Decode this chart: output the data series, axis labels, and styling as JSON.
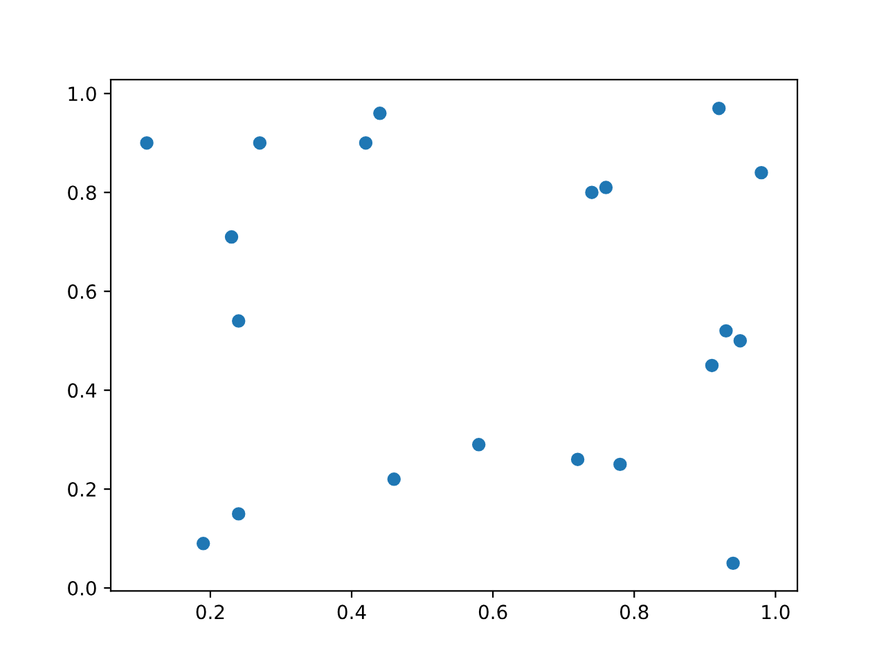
{
  "chart_data": {
    "type": "scatter",
    "x": [
      0.11,
      0.27,
      0.42,
      0.44,
      0.23,
      0.24,
      0.19,
      0.24,
      0.46,
      0.58,
      0.72,
      0.78,
      0.74,
      0.76,
      0.92,
      0.98,
      0.93,
      0.95,
      0.91,
      0.94
    ],
    "values": [
      0.9,
      0.9,
      0.9,
      0.96,
      0.71,
      0.54,
      0.09,
      0.15,
      0.22,
      0.29,
      0.26,
      0.25,
      0.8,
      0.81,
      0.97,
      0.84,
      0.52,
      0.5,
      0.45,
      0.05
    ],
    "color": "#1f77b4",
    "marker": "circle",
    "xlim": [
      0.059,
      1.031
    ],
    "ylim": [
      -0.006,
      1.028
    ],
    "xticks": [
      0.2,
      0.4,
      0.6,
      0.8,
      {
        "value": 1,
        "label": "1.0"
      }
    ],
    "yticks": [
      {
        "value": 0,
        "label": "0.0"
      },
      0.2,
      0.4,
      0.6,
      0.8,
      {
        "value": 1,
        "label": "1.0"
      }
    ],
    "grid": false
  }
}
